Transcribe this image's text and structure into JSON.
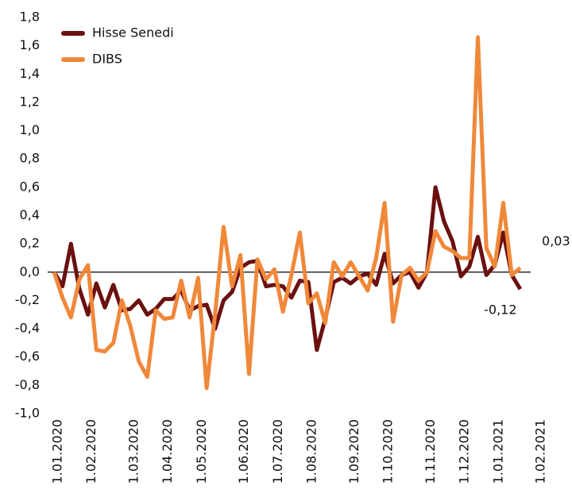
{
  "chart_data": {
    "type": "line",
    "categories": [
      "1.01.2020",
      null,
      null,
      null,
      "1.02.2020",
      null,
      null,
      null,
      null,
      "1.03.2020",
      null,
      null,
      null,
      "1.04.2020",
      null,
      null,
      null,
      "1.05.2020",
      null,
      null,
      null,
      null,
      "1.06.2020",
      null,
      null,
      null,
      "1.07.2020",
      null,
      null,
      null,
      "1.08.2020",
      null,
      null,
      null,
      null,
      "1.09.2020",
      null,
      null,
      null,
      "1.10.2020",
      null,
      null,
      null,
      null,
      "1.11.2020",
      null,
      null,
      null,
      "1.12.2020",
      null,
      null,
      null,
      "1.01.2021",
      null,
      null,
      null,
      null,
      "1.02.2021"
    ],
    "series": [
      {
        "name": "Hisse Senedi",
        "color": "#6b1010",
        "values": [
          0,
          -0.1,
          0.2,
          -0.12,
          -0.3,
          -0.08,
          -0.25,
          -0.09,
          -0.27,
          -0.26,
          -0.2,
          -0.3,
          -0.26,
          -0.19,
          -0.19,
          -0.13,
          -0.27,
          -0.24,
          -0.23,
          -0.4,
          -0.2,
          -0.14,
          0.03,
          0.07,
          0.08,
          -0.1,
          -0.09,
          -0.1,
          -0.18,
          -0.06,
          -0.07,
          -0.55,
          -0.33,
          -0.07,
          -0.04,
          -0.08,
          -0.03,
          -0.01,
          -0.09,
          0.13,
          -0.08,
          -0.02,
          0,
          -0.11,
          0,
          0.6,
          0.36,
          0.22,
          -0.03,
          0.04,
          0.25,
          -0.02,
          0.05,
          0.28,
          -0.02,
          -0.12,
          null,
          null
        ],
        "value_labels": [
          null,
          null,
          null,
          null,
          null,
          null,
          null,
          null,
          null,
          null,
          null,
          null,
          null,
          null,
          null,
          null,
          null,
          null,
          null,
          null,
          null,
          null,
          null,
          null,
          null,
          null,
          null,
          null,
          null,
          null,
          null,
          null,
          null,
          null,
          null,
          null,
          null,
          null,
          null,
          null,
          null,
          null,
          null,
          null,
          null,
          null,
          null,
          null,
          null,
          null,
          null,
          null,
          null,
          null,
          null,
          "-0,12",
          null,
          null
        ]
      },
      {
        "name": "DIBS",
        "color": "#f0883a",
        "values": [
          0,
          -0.18,
          -0.32,
          -0.05,
          0.05,
          -0.55,
          -0.56,
          -0.5,
          -0.2,
          -0.38,
          -0.63,
          -0.74,
          -0.27,
          -0.33,
          -0.32,
          -0.06,
          -0.32,
          -0.04,
          -0.82,
          -0.3,
          0.32,
          -0.1,
          0.12,
          -0.72,
          0.09,
          -0.05,
          0.02,
          -0.28,
          -0.02,
          0.28,
          -0.22,
          -0.15,
          -0.36,
          0.07,
          -0.03,
          0.07,
          -0.03,
          -0.13,
          0.1,
          0.49,
          -0.35,
          -0.02,
          0.03,
          -0.06,
          0,
          0.29,
          0.18,
          0.15,
          0.1,
          0.1,
          1.66,
          0.17,
          0.04,
          0.49,
          -0.02,
          0.03,
          null,
          null
        ],
        "value_labels": [
          null,
          null,
          null,
          null,
          null,
          null,
          null,
          null,
          null,
          null,
          null,
          null,
          null,
          null,
          null,
          null,
          null,
          null,
          null,
          null,
          null,
          null,
          null,
          null,
          null,
          null,
          null,
          null,
          null,
          null,
          null,
          null,
          null,
          null,
          null,
          null,
          null,
          null,
          null,
          null,
          null,
          null,
          null,
          null,
          null,
          null,
          null,
          null,
          null,
          null,
          null,
          null,
          null,
          null,
          null,
          "0,03",
          null,
          null
        ]
      }
    ],
    "ylim": [
      -1.0,
      1.8
    ],
    "yticks": [
      {
        "value": -1.0,
        "label": "-1,0"
      },
      {
        "value": -0.8,
        "label": "-0,8"
      },
      {
        "value": -0.6,
        "label": "-0,6"
      },
      {
        "value": -0.4,
        "label": "-0,4"
      },
      {
        "value": -0.2,
        "label": "-0,2"
      },
      {
        "value": 0,
        "label": "0,0"
      },
      {
        "value": 0.2,
        "label": "0,2"
      },
      {
        "value": 0.4,
        "label": "0,4"
      },
      {
        "value": 0.6,
        "label": "0,6"
      },
      {
        "value": 0.8,
        "label": "0,8"
      },
      {
        "value": 1.0,
        "label": "1,0"
      },
      {
        "value": 1.2,
        "label": "1,2"
      },
      {
        "value": 1.4,
        "label": "1,4"
      },
      {
        "value": 1.6,
        "label": "1,6"
      },
      {
        "value": 1.8,
        "label": "1,8"
      }
    ],
    "legend": "top-left"
  }
}
